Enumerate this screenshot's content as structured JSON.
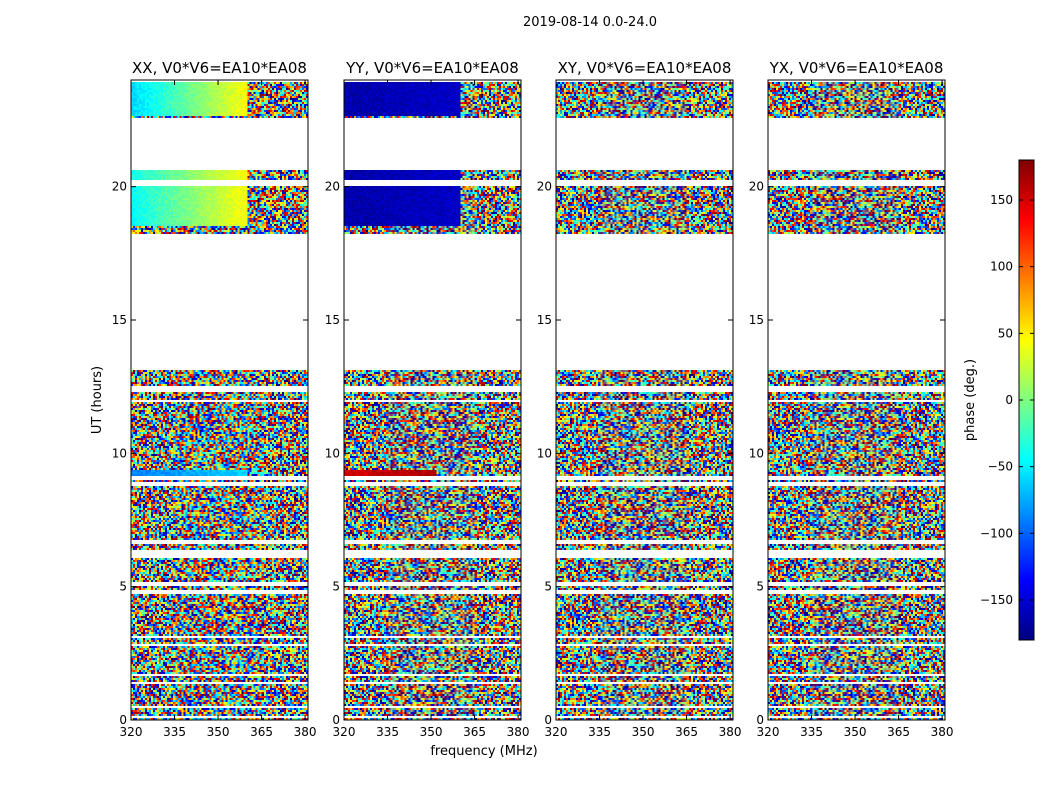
{
  "figure": {
    "suptitle": "2019-08-14 0.0-24.0",
    "xlabel": "frequency (MHz)",
    "ylabel": "UT (hours)"
  },
  "colorbar": {
    "label": "phase (deg.)",
    "range": [
      -180,
      180
    ],
    "ticks": [
      150,
      100,
      50,
      0,
      -50,
      -100,
      -150
    ],
    "tick_labels": [
      "150",
      "100",
      "50",
      "0",
      "−50",
      "−100",
      "−150"
    ],
    "colormap": "jet"
  },
  "chart_data": {
    "type": "heatmap",
    "xlim": [
      320,
      381
    ],
    "ylim": [
      0,
      24
    ],
    "xticks": [
      320,
      335,
      350,
      365,
      380
    ],
    "yticks": [
      0,
      5,
      10,
      15,
      20
    ],
    "flagged_ut_ranges": [
      [
        13.1,
        18.2
      ],
      [
        20.6,
        22.6
      ],
      [
        20.0,
        20.25
      ],
      [
        11.9,
        12.0
      ],
      [
        12.3,
        12.5
      ],
      [
        9.0,
        9.15
      ],
      [
        8.8,
        8.95
      ],
      [
        6.6,
        6.75
      ],
      [
        6.1,
        6.35
      ],
      [
        5.0,
        5.15
      ],
      [
        4.75,
        4.85
      ],
      [
        3.05,
        3.15
      ],
      [
        2.75,
        2.85
      ],
      [
        1.65,
        1.75
      ],
      [
        1.35,
        1.45
      ],
      [
        0.45,
        0.55
      ],
      [
        0.05,
        0.12
      ]
    ],
    "panels": [
      {
        "title": "XX, V0*V6=EA10*EA08",
        "coherent_bands": [
          {
            "ut": [
              22.65,
              23.9
            ],
            "freq": [
              320,
              360
            ],
            "phase_from": -60,
            "phase_to": 45
          },
          {
            "ut": [
              18.5,
              20.0
            ],
            "freq": [
              320,
              360
            ],
            "phase_from": -45,
            "phase_to": 45
          },
          {
            "ut": [
              20.25,
              20.6
            ],
            "freq": [
              320,
              360
            ],
            "phase_from": -40,
            "phase_to": 45
          },
          {
            "ut": [
              9.15,
              9.35
            ],
            "freq": [
              320,
              360
            ],
            "phase_from": -90,
            "phase_to": -60
          }
        ]
      },
      {
        "title": "YY, V0*V6=EA10*EA08",
        "coherent_bands": [
          {
            "ut": [
              22.65,
              23.9
            ],
            "freq": [
              320,
              360
            ],
            "phase_from": -165,
            "phase_to": -155
          },
          {
            "ut": [
              18.5,
              20.0
            ],
            "freq": [
              320,
              360
            ],
            "phase_from": -165,
            "phase_to": -155
          },
          {
            "ut": [
              20.25,
              20.6
            ],
            "freq": [
              320,
              360
            ],
            "phase_from": -165,
            "phase_to": -155
          },
          {
            "ut": [
              9.1,
              9.4
            ],
            "freq": [
              320,
              352
            ],
            "phase_from": 150,
            "phase_to": 165
          }
        ]
      },
      {
        "title": "XY, V0*V6=EA10*EA08",
        "coherent_bands": []
      },
      {
        "title": "YX, V0*V6=EA10*EA08",
        "coherent_bands": []
      }
    ]
  }
}
